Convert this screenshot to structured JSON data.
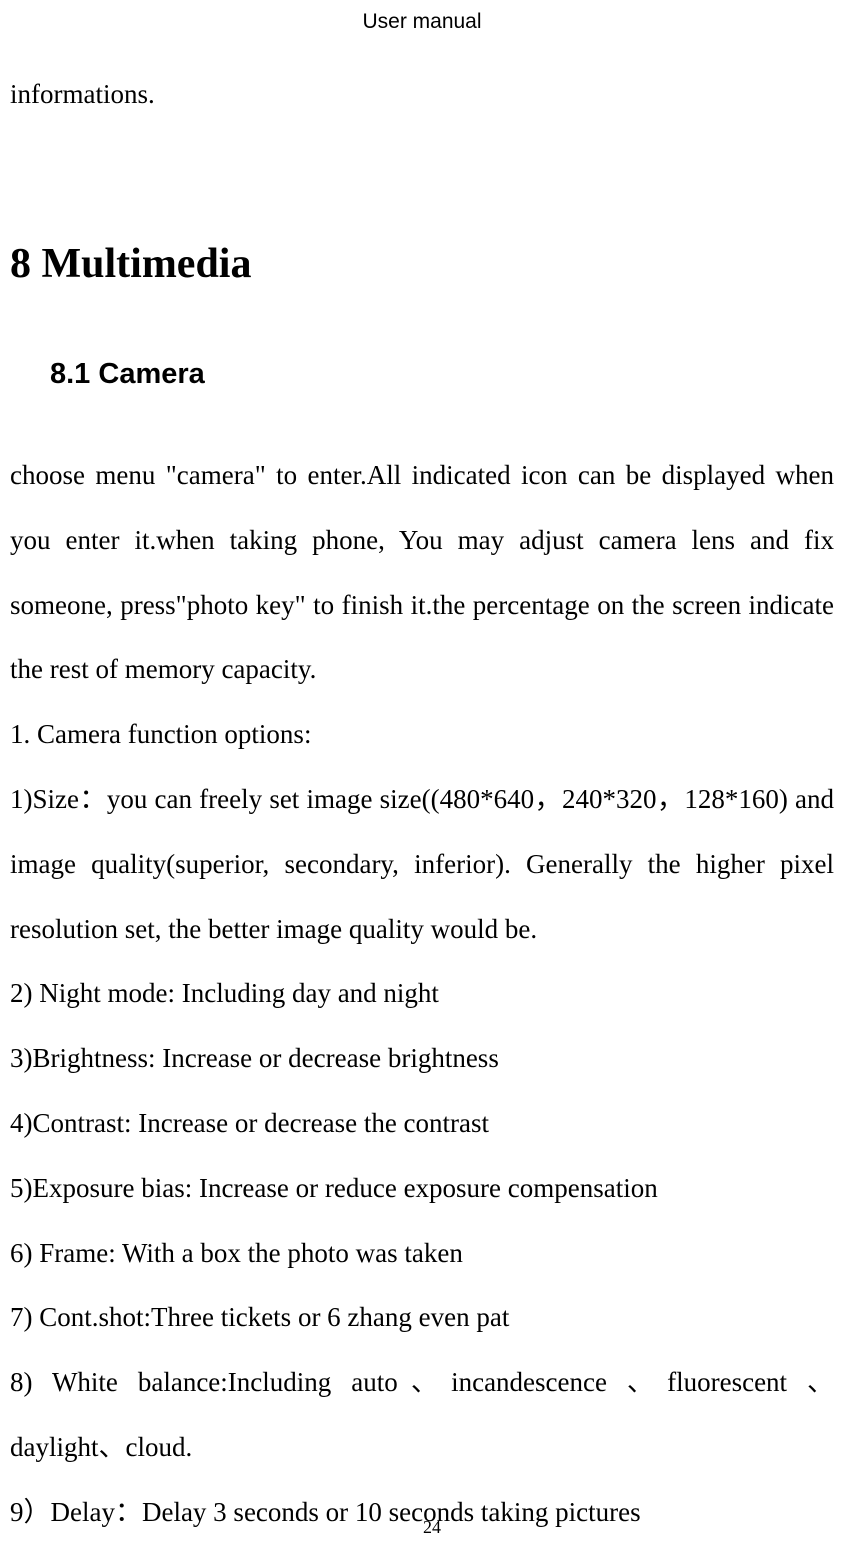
{
  "header": {
    "title": "User manual"
  },
  "content": {
    "continuation": "informations.",
    "chapter_title": "8 Multimedia",
    "section_title": "8.1 Camera",
    "intro_paragraph": "choose menu \"camera\" to enter.All indicated icon can be displayed when you enter it.when taking phone, You may adjust camera lens and fix someone, press\"photo key\" to finish it.the percentage on the screen indicate the rest of memory capacity.",
    "list_heading": "1. Camera function options:",
    "item1_part1": "1)Size：you can freely set image size((480*640，240*320，128*160) and image quality(superior, secondary, inferior). Generally the higher pixel resolution set, the better image quality would be.",
    "item2": "2) Night mode:    Including day and night",
    "item3": "3)Brightness: Increase or decrease brightness",
    "item4": "4)Contrast: Increase or decrease the contrast",
    "item5": "5)Exposure bias: Increase or reduce exposure compensation",
    "item6": "6) Frame: With a box the photo was taken",
    "item7": "7) Cont.shot:Three tickets or 6 zhang even pat",
    "item8": "8) White balance:Including auto、incandescence 、fluorescent 、daylight、cloud.",
    "item9": "9）Delay：Delay 3 seconds or 10 seconds taking pictures"
  },
  "footer": {
    "page_number": "24"
  }
}
